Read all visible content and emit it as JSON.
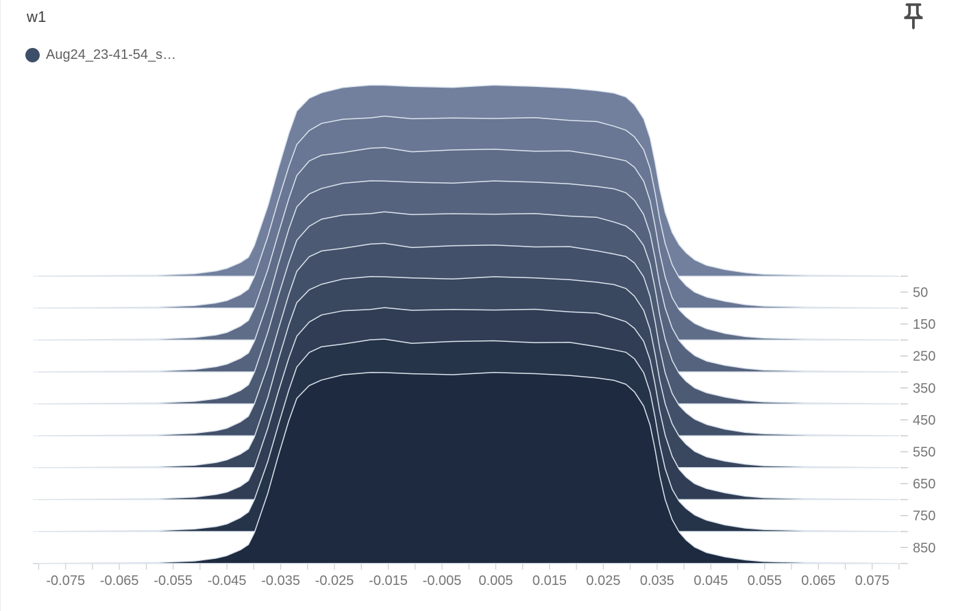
{
  "card": {
    "title": "w1"
  },
  "legend": {
    "runs": [
      {
        "name": "Aug24_23-41-54_s…",
        "color": "#3D4E68"
      }
    ]
  },
  "icons": {
    "pin": "push-pin-icon"
  },
  "chart_data": {
    "type": "area",
    "variant": "histogram-ridgeline-offset",
    "title": "w1",
    "series": [
      {
        "name": "Aug24_23-41-54_s…",
        "color_back": "#72809E",
        "color_front": "#1D2A40"
      }
    ],
    "x_axis": {
      "range": [
        -0.08,
        0.08
      ],
      "minor_tick_interval": 0.005,
      "tick_labels": [
        "-0.075",
        "-0.065",
        "-0.055",
        "-0.045",
        "-0.035",
        "-0.025",
        "-0.015",
        "-0.005",
        "0.005",
        "0.015",
        "0.025",
        "0.035",
        "0.045",
        "0.055",
        "0.065",
        "0.075"
      ]
    },
    "y_axis": {
      "side": "right",
      "tick_labels": [
        "50",
        "150",
        "250",
        "350",
        "450",
        "550",
        "650",
        "750",
        "850"
      ],
      "gridline_count": 10
    },
    "num_layers": 10,
    "outline_color": "#DCE4EC",
    "gridline_color": "#E3E3E3",
    "axis_line_color": "#C9C9C9",
    "tick_color": "#CCCCCC",
    "axis_text_color": "#757575",
    "histogram_outline": [
      [
        -0.08,
        0.0
      ],
      [
        -0.058,
        0.005
      ],
      [
        -0.051,
        0.013
      ],
      [
        -0.047,
        0.027
      ],
      [
        -0.045,
        0.04
      ],
      [
        -0.0425,
        0.071
      ],
      [
        -0.041,
        0.1
      ],
      [
        -0.0399,
        0.164
      ],
      [
        -0.0374,
        0.368
      ],
      [
        -0.0355,
        0.554
      ],
      [
        -0.0335,
        0.739
      ],
      [
        -0.032,
        0.857
      ],
      [
        -0.0297,
        0.929
      ],
      [
        -0.0274,
        0.961
      ],
      [
        -0.0234,
        0.982
      ],
      [
        -0.0183,
        0.996
      ],
      [
        -0.0157,
        1.0
      ],
      [
        -0.0106,
        0.986
      ],
      [
        -0.003,
        0.989
      ],
      [
        0.0047,
        0.993
      ],
      [
        0.0123,
        0.989
      ],
      [
        0.0187,
        0.982
      ],
      [
        0.0238,
        0.968
      ],
      [
        0.027,
        0.95
      ],
      [
        0.0292,
        0.932
      ],
      [
        0.0308,
        0.896
      ],
      [
        0.0325,
        0.825
      ],
      [
        0.0337,
        0.725
      ],
      [
        0.0346,
        0.6
      ],
      [
        0.0355,
        0.457
      ],
      [
        0.0365,
        0.332
      ],
      [
        0.0378,
        0.225
      ],
      [
        0.0391,
        0.16
      ],
      [
        0.0404,
        0.12
      ],
      [
        0.042,
        0.085
      ],
      [
        0.0442,
        0.058
      ],
      [
        0.0476,
        0.035
      ],
      [
        0.0514,
        0.018
      ],
      [
        0.0548,
        0.01
      ],
      [
        0.063,
        0.005
      ],
      [
        0.08,
        0.0
      ]
    ]
  }
}
